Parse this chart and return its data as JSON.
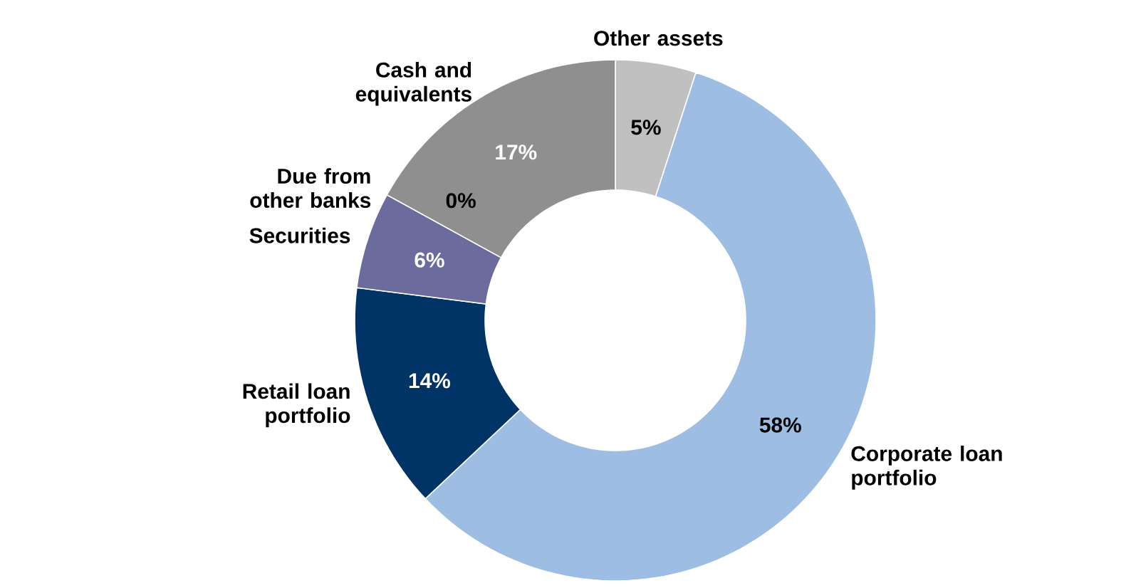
{
  "chart_data": {
    "type": "donut",
    "categories": [
      "Other assets",
      "Corporate loan portfolio",
      "Retail loan portfolio",
      "Securities",
      "Due from other banks",
      "Cash and equivalents"
    ],
    "values": [
      5,
      58,
      14,
      6,
      0,
      17
    ],
    "value_labels": [
      "5%",
      "58%",
      "14%",
      "6%",
      "0%",
      "17%"
    ],
    "colors": [
      "#c0c0c0",
      "#9dbde3",
      "#003366",
      "#6b6b9e",
      "#b3b3e0",
      "#8f8f8f"
    ]
  }
}
